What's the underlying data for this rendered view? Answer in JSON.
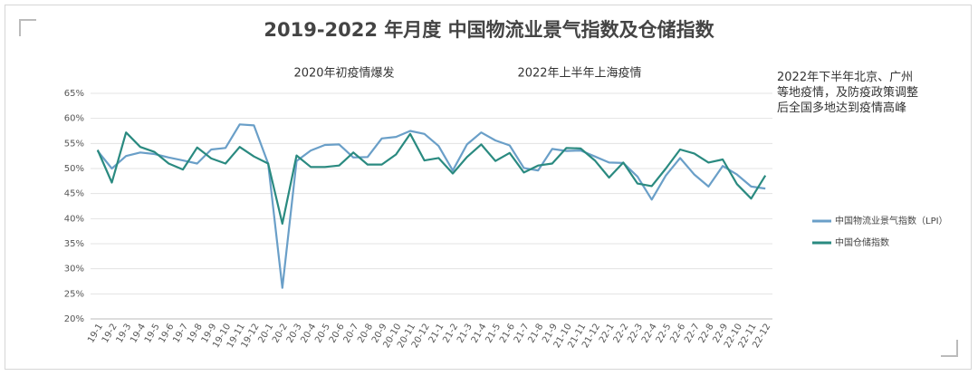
{
  "chart_data": {
    "type": "line",
    "title": "2019-2022 年月度 中国物流业景气指数及仓储指数",
    "annotations": [
      "2020年初疫情爆发",
      "2022年上半年上海疫情",
      "2022年下半年北京、广州等地疫情，及防疫政策调整后全国多地达到疫情高峰"
    ],
    "categories": [
      "19-1",
      "19-2",
      "19-3",
      "19-4",
      "19-5",
      "19-6",
      "19-7",
      "19-8",
      "19-9",
      "19-10",
      "19-11",
      "19-12",
      "20-1",
      "20-2",
      "20-3",
      "20-4",
      "20-5",
      "20-6",
      "20-7",
      "20-8",
      "20-9",
      "20-10",
      "20-11",
      "20-12",
      "21-1",
      "21-2",
      "21-3",
      "21-4",
      "21-5",
      "21-6",
      "21-7",
      "21-8",
      "21-9",
      "21-10",
      "21-11",
      "21-12",
      "22-1",
      "22-2",
      "22-3",
      "22-4",
      "22-5",
      "22-6",
      "22-7",
      "22-8",
      "22-9",
      "22-10",
      "22-11",
      "22-12"
    ],
    "series": [
      {
        "name": "中国物流业景气指数（LPI）",
        "color": "#6a9fc8",
        "values": [
          53.5,
          50.0,
          52.5,
          53.2,
          52.9,
          52.2,
          51.6,
          51.0,
          53.8,
          54.1,
          58.8,
          58.6,
          51.0,
          26.2,
          51.5,
          53.6,
          54.7,
          54.8,
          52.2,
          52.3,
          56.0,
          56.3,
          57.5,
          56.9,
          54.5,
          49.6,
          54.8,
          57.2,
          55.6,
          54.6,
          50.1,
          49.6,
          53.9,
          53.5,
          53.6,
          52.4,
          51.2,
          51.1,
          48.4,
          43.8,
          48.6,
          52.1,
          48.8,
          46.4,
          50.5,
          48.8,
          46.4,
          46.0
        ]
      },
      {
        "name": "中国仓储指数",
        "color": "#2a8a80",
        "values": [
          53.7,
          47.2,
          57.2,
          54.3,
          53.3,
          51.0,
          49.8,
          54.2,
          52.0,
          51.0,
          54.3,
          52.4,
          51.0,
          39.0,
          52.6,
          50.3,
          50.3,
          50.6,
          53.2,
          50.8,
          50.8,
          52.8,
          56.9,
          51.6,
          52.1,
          49.0,
          52.3,
          54.8,
          51.5,
          53.1,
          49.2,
          50.6,
          51.0,
          54.1,
          54.0,
          51.6,
          48.2,
          51.2,
          47.0,
          46.5,
          50.0,
          53.8,
          53.0,
          51.2,
          51.8,
          46.9,
          44.0,
          48.6
        ]
      }
    ],
    "ylim": [
      20,
      65
    ],
    "yticks": [
      {
        "value": 20,
        "label": "20%"
      },
      {
        "value": 25,
        "label": "25%"
      },
      {
        "value": 30,
        "label": "30%"
      },
      {
        "value": 35,
        "label": "35%"
      },
      {
        "value": 40,
        "label": "40%"
      },
      {
        "value": 45,
        "label": "45%"
      },
      {
        "value": 50,
        "label": "50%"
      },
      {
        "value": 55,
        "label": "55%"
      },
      {
        "value": 60,
        "label": "60%"
      },
      {
        "value": 65,
        "label": "65%"
      }
    ],
    "grid": true
  }
}
